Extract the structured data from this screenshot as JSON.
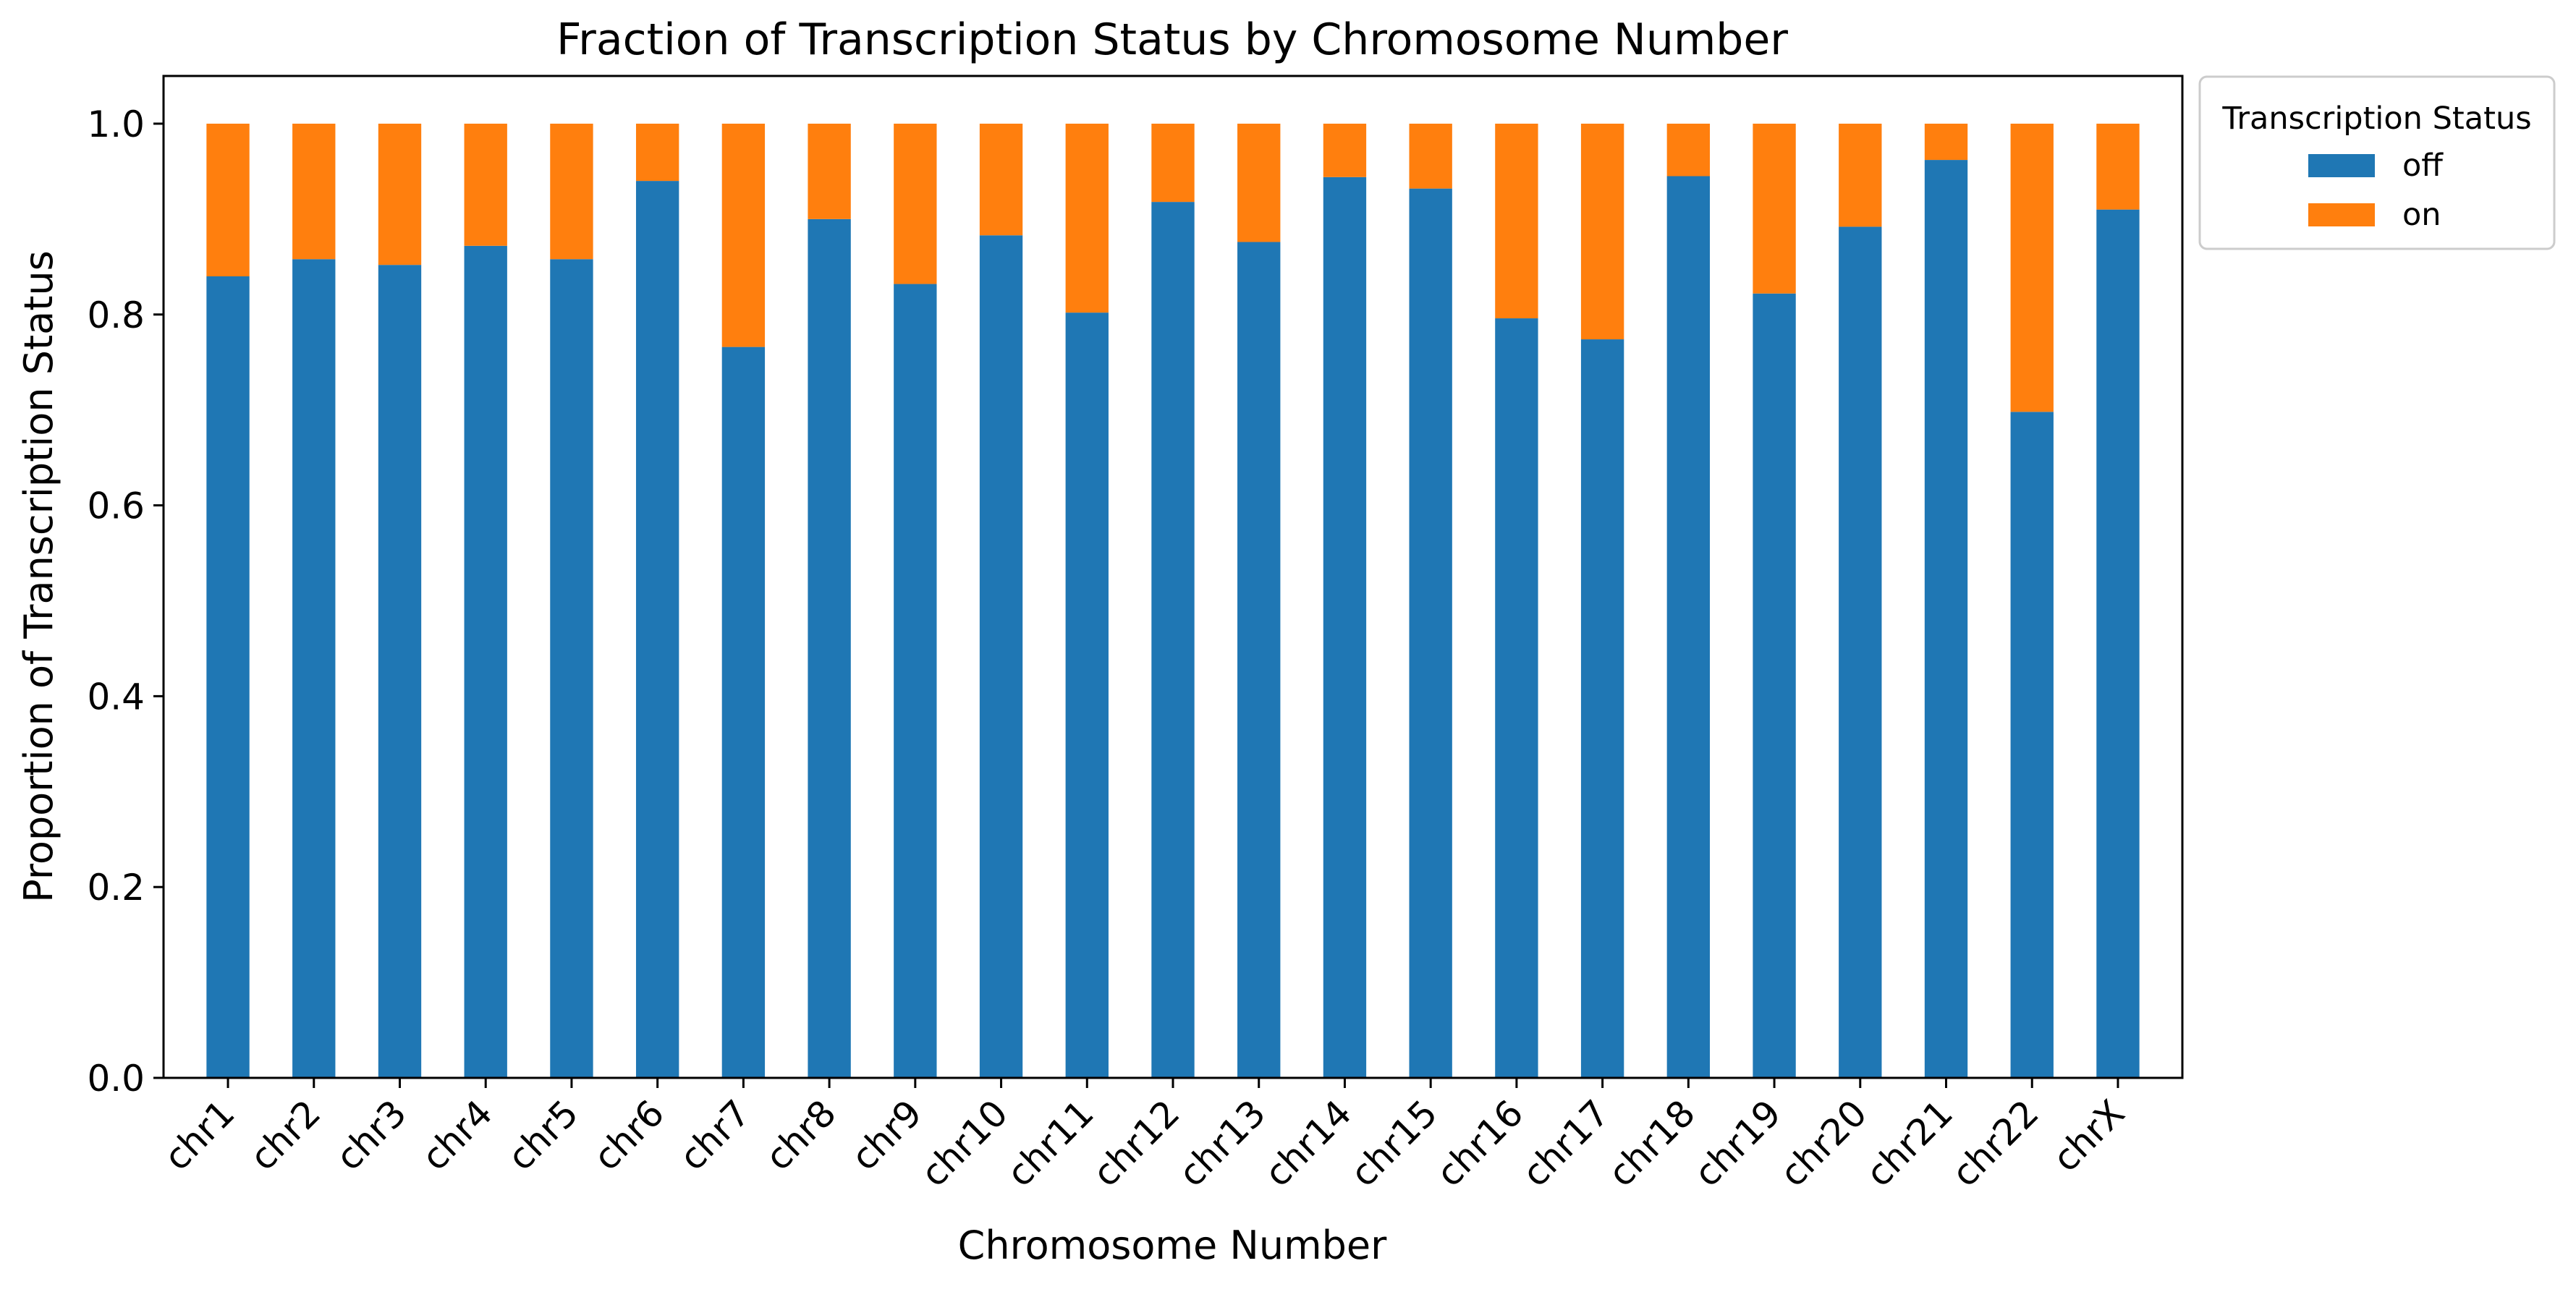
{
  "chart_data": {
    "type": "bar",
    "stacked": true,
    "title": "Fraction of Transcription Status by Chromosome Number",
    "xlabel": "Chromosome Number",
    "ylabel": "Proportion of Transcription Status",
    "ylim": [
      0,
      1.05
    ],
    "yticks": [
      "0.0",
      "0.2",
      "0.4",
      "0.6",
      "0.8",
      "1.0"
    ],
    "grid": false,
    "legend": {
      "title": "Transcription Status",
      "placement": "outside-top-right"
    },
    "categories": [
      "chr1",
      "chr2",
      "chr3",
      "chr4",
      "chr5",
      "chr6",
      "chr7",
      "chr8",
      "chr9",
      "chr10",
      "chr11",
      "chr12",
      "chr13",
      "chr14",
      "chr15",
      "chr16",
      "chr17",
      "chr18",
      "chr19",
      "chr20",
      "chr21",
      "chr22",
      "chrX"
    ],
    "series": [
      {
        "name": "off",
        "color": "#1f77b4",
        "values": [
          0.84,
          0.858,
          0.852,
          0.872,
          0.858,
          0.94,
          0.766,
          0.9,
          0.832,
          0.883,
          0.802,
          0.918,
          0.876,
          0.944,
          0.932,
          0.796,
          0.774,
          0.945,
          0.822,
          0.892,
          0.962,
          0.698,
          0.91
        ]
      },
      {
        "name": "on",
        "color": "#ff7f0e",
        "values": [
          0.16,
          0.142,
          0.148,
          0.128,
          0.142,
          0.06,
          0.234,
          0.1,
          0.168,
          0.117,
          0.198,
          0.082,
          0.124,
          0.056,
          0.068,
          0.204,
          0.226,
          0.055,
          0.178,
          0.108,
          0.038,
          0.302,
          0.09
        ]
      }
    ]
  }
}
